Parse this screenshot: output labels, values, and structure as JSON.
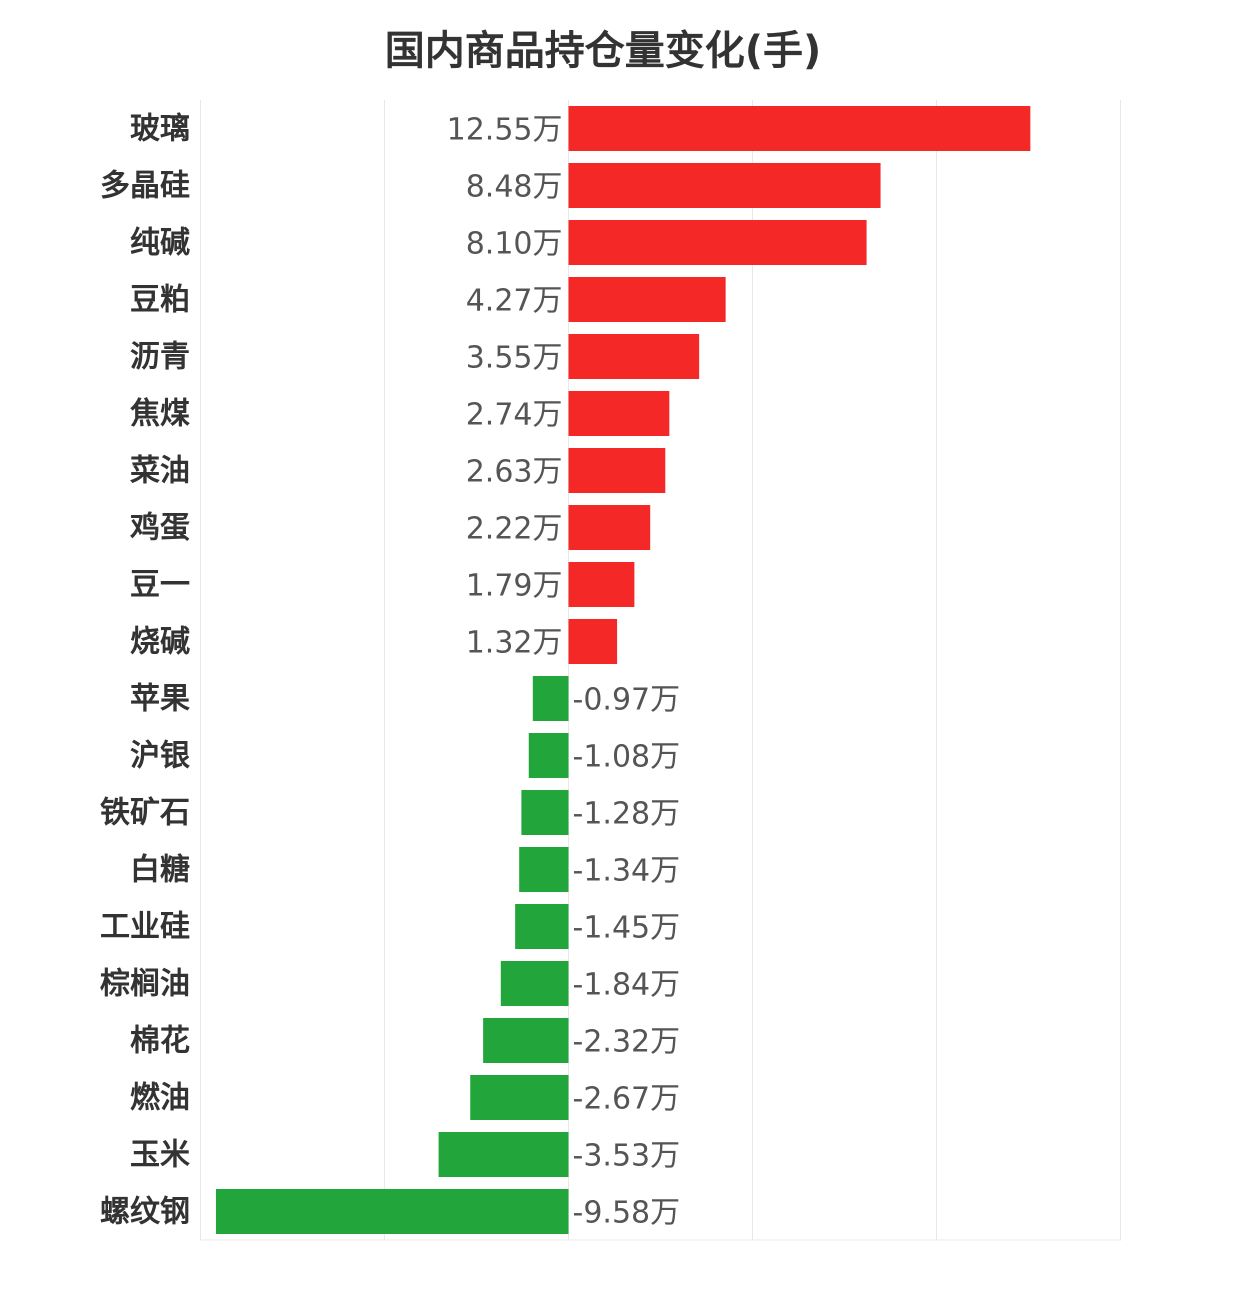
{
  "chart_data": {
    "type": "bar",
    "orientation": "horizontal",
    "title": "国内商品持仓量变化(手)",
    "value_suffix": "万",
    "categories": [
      "玻璃",
      "多晶硅",
      "纯碱",
      "豆粕",
      "沥青",
      "焦煤",
      "菜油",
      "鸡蛋",
      "豆一",
      "烧碱",
      "苹果",
      "沪银",
      "铁矿石",
      "白糖",
      "工业硅",
      "棕榈油",
      "棉花",
      "燃油",
      "玉米",
      "螺纹钢"
    ],
    "values": [
      12.55,
      8.48,
      8.1,
      4.27,
      3.55,
      2.74,
      2.63,
      2.22,
      1.79,
      1.32,
      -0.97,
      -1.08,
      -1.28,
      -1.34,
      -1.45,
      -1.84,
      -2.32,
      -2.67,
      -3.53,
      -9.58
    ],
    "value_labels": [
      "12.55万",
      "8.48万",
      "8.10万",
      "4.27万",
      "3.55万",
      "2.74万",
      "2.63万",
      "2.22万",
      "1.79万",
      "1.32万",
      "-0.97万",
      "-1.08万",
      "-1.28万",
      "-1.34万",
      "-1.45万",
      "-1.84万",
      "-2.32万",
      "-2.67万",
      "-3.53万",
      "-9.58万"
    ],
    "xlim": [
      -10,
      15
    ],
    "grid": true,
    "colors": {
      "positive": "#f52828",
      "negative": "#22a53a",
      "grid": "#e8e8e8"
    }
  }
}
